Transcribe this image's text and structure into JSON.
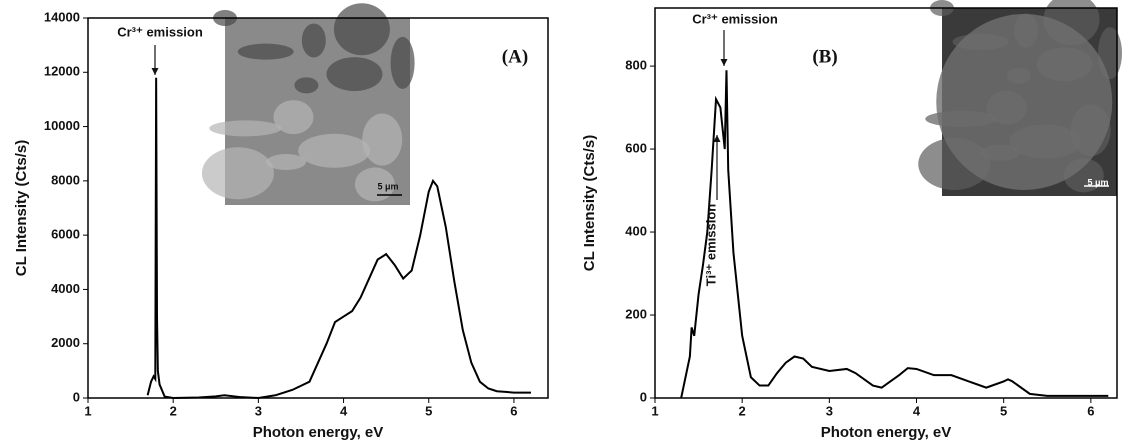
{
  "chart_data": [
    {
      "type": "line",
      "x_label": "Photon energy, eV",
      "y_label": "CL Intensity (Cts/s)",
      "annotations": [
        "Cr³⁺ emission",
        "(A)",
        "5 μm"
      ],
      "xlim": [
        1,
        6.4
      ],
      "xticks": [
        1,
        2,
        3,
        4,
        5,
        6
      ],
      "ylim": [
        0,
        14000
      ],
      "yticks": [
        0,
        2000,
        4000,
        6000,
        8000,
        10000,
        12000,
        14000
      ],
      "x": [
        1.7,
        1.74,
        1.77,
        1.79,
        1.8,
        1.81,
        1.82,
        1.84,
        1.9,
        2.0,
        2.3,
        2.5,
        2.6,
        2.8,
        3.0,
        3.2,
        3.4,
        3.6,
        3.8,
        3.9,
        4.0,
        4.1,
        4.2,
        4.3,
        4.4,
        4.5,
        4.6,
        4.7,
        4.8,
        4.9,
        5.0,
        5.05,
        5.1,
        5.2,
        5.3,
        5.4,
        5.5,
        5.6,
        5.7,
        5.8,
        6.0,
        6.2
      ],
      "series": [
        {
          "color": "#000000",
          "values": [
            100,
            600,
            800,
            700,
            11800,
            3000,
            1000,
            500,
            50,
            0,
            20,
            60,
            100,
            30,
            0,
            100,
            300,
            600,
            2000,
            2800,
            3000,
            3200,
            3700,
            4400,
            5100,
            5300,
            4900,
            4400,
            4700,
            6000,
            7600,
            8000,
            7800,
            6300,
            4300,
            2500,
            1300,
            600,
            350,
            250,
            200,
            200
          ]
        }
      ]
    },
    {
      "type": "line",
      "x_label": "Photon energy, eV",
      "y_label": "CL Intensity (Cts/s)",
      "annotations": [
        "Cr³⁺ emission",
        "Ti³⁺ emission",
        "(B)",
        "5 μm"
      ],
      "xlim": [
        1,
        6.3
      ],
      "xticks": [
        1,
        2,
        3,
        4,
        5,
        6
      ],
      "ylim": [
        0,
        940
      ],
      "yticks": [
        0,
        200,
        400,
        600,
        800
      ],
      "x": [
        1.3,
        1.4,
        1.42,
        1.45,
        1.5,
        1.55,
        1.6,
        1.65,
        1.7,
        1.75,
        1.8,
        1.82,
        1.84,
        1.9,
        2.0,
        2.1,
        2.2,
        2.3,
        2.4,
        2.5,
        2.6,
        2.7,
        2.8,
        3.0,
        3.2,
        3.3,
        3.5,
        3.6,
        3.8,
        3.9,
        4.0,
        4.2,
        4.4,
        4.6,
        4.8,
        5.0,
        5.05,
        5.1,
        5.3,
        5.5,
        6.2
      ],
      "series": [
        {
          "color": "#000000",
          "values": [
            0,
            100,
            170,
            150,
            250,
            320,
            400,
            550,
            720,
            700,
            600,
            790,
            550,
            350,
            150,
            50,
            30,
            30,
            60,
            85,
            100,
            95,
            75,
            65,
            70,
            60,
            30,
            25,
            55,
            72,
            70,
            55,
            55,
            40,
            25,
            40,
            45,
            40,
            10,
            5,
            5
          ]
        }
      ]
    }
  ]
}
